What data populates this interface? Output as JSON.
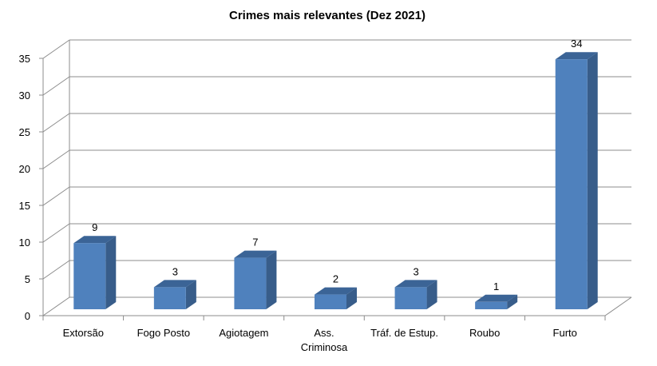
{
  "chart_data": {
    "type": "bar",
    "title": "Crimes mais relevantes (Dez 2021)",
    "categories": [
      "Extorsão",
      "Fogo Posto",
      "Agiotagem",
      "Ass. Criminosa",
      "Tráf. de Estup.",
      "Roubo",
      "Furto"
    ],
    "category_lines": [
      [
        "Extorsão"
      ],
      [
        "Fogo Posto"
      ],
      [
        "Agiotagem"
      ],
      [
        "Ass.",
        "Criminosa"
      ],
      [
        "Tráf. de Estup."
      ],
      [
        "Roubo"
      ],
      [
        "Furto"
      ]
    ],
    "values": [
      9,
      3,
      7,
      2,
      3,
      1,
      34
    ],
    "ylim": [
      0,
      35
    ],
    "yticks": [
      0,
      5,
      10,
      15,
      20,
      25,
      30,
      35
    ],
    "grid": true,
    "data_labels": true,
    "legend": "none",
    "bar_color": "#4F81BD",
    "bar_side_color": "#385D8A",
    "bar_top_color": "#3B6496"
  }
}
